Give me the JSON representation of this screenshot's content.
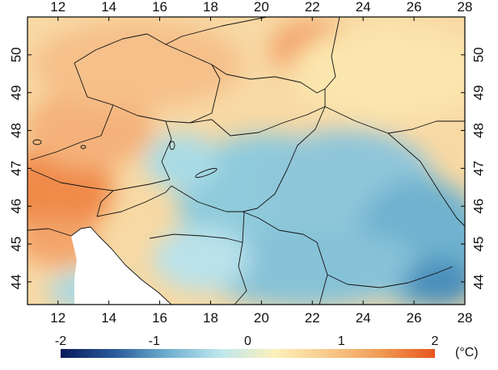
{
  "map": {
    "lon_range": [
      10.8,
      28.0
    ],
    "lat_range": [
      43.4,
      51.0
    ],
    "top_ticks": [
      "12",
      "14",
      "16",
      "18",
      "20",
      "22",
      "24",
      "26",
      "28"
    ],
    "bottom_ticks": [
      "12",
      "14",
      "16",
      "18",
      "20",
      "22",
      "24",
      "26",
      "28"
    ],
    "left_ticks": [
      "50",
      "49",
      "48",
      "47",
      "46",
      "45",
      "44"
    ],
    "right_ticks": [
      "50",
      "49",
      "48",
      "47",
      "46",
      "45",
      "44"
    ],
    "tick_lon_values": [
      12,
      14,
      16,
      18,
      20,
      22,
      24,
      26,
      28
    ],
    "tick_lat_values": [
      50,
      49,
      48,
      47,
      46,
      45,
      44
    ]
  },
  "colorbar": {
    "min": -2,
    "max": 2,
    "tick_labels": [
      "-2",
      "-1",
      "0",
      "1",
      "2"
    ],
    "tick_values": [
      -2,
      -1,
      0,
      1,
      2
    ],
    "unit": "(°C)",
    "stops": [
      "#0a1a5c",
      "#2a5a9a",
      "#6fb0cf",
      "#bfe7ee",
      "#fbf0b9",
      "#f8c98a",
      "#f09a55",
      "#e8561c"
    ]
  },
  "colors": {
    "frame": "#000000",
    "borders": "#111111",
    "nodata": "#ffffff"
  }
}
